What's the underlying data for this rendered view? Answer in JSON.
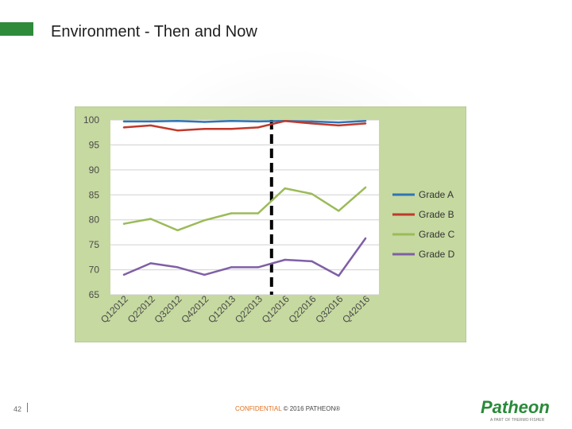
{
  "slide": {
    "title": "Environment - Then and Now",
    "page_number": "42",
    "footer_confidential": "CONFIDENTIAL",
    "footer_copyright": "© 2016 PATHEON®",
    "logo_text": "Patheon",
    "logo_tagline": "A PART OF THERMO FISHER",
    "accent_color": "#2e8b3a"
  },
  "chart_data": {
    "type": "line",
    "categories": [
      "Q12012",
      "Q22012",
      "Q32012",
      "Q42012",
      "Q12013",
      "Q22013",
      "Q12016",
      "Q22016",
      "Q32016",
      "Q42016"
    ],
    "series": [
      {
        "name": "Grade A",
        "color": "#2e75b6",
        "values": [
          99.7,
          99.7,
          99.8,
          99.6,
          99.8,
          99.7,
          99.8,
          99.7,
          99.5,
          99.8
        ]
      },
      {
        "name": "Grade B",
        "color": "#c0392b",
        "values": [
          98.5,
          98.9,
          97.9,
          98.2,
          98.2,
          98.5,
          99.8,
          99.3,
          98.9,
          99.3
        ]
      },
      {
        "name": "Grade C",
        "color": "#9bbb59",
        "values": [
          79.2,
          80.2,
          77.9,
          79.9,
          81.3,
          81.3,
          86.3,
          85.2,
          81.8,
          86.5
        ]
      },
      {
        "name": "Grade D",
        "color": "#7f5fa5",
        "values": [
          69.0,
          71.3,
          70.5,
          69.0,
          70.5,
          70.5,
          72.0,
          71.7,
          68.8,
          76.3
        ]
      }
    ],
    "ylim": [
      65,
      100
    ],
    "yticks": [
      65,
      70,
      75,
      80,
      85,
      90,
      95,
      100
    ],
    "grid": true,
    "legend": "right",
    "divider_between": [
      "Q22013",
      "Q12016"
    ],
    "plot_background": "#c6d9a0"
  }
}
